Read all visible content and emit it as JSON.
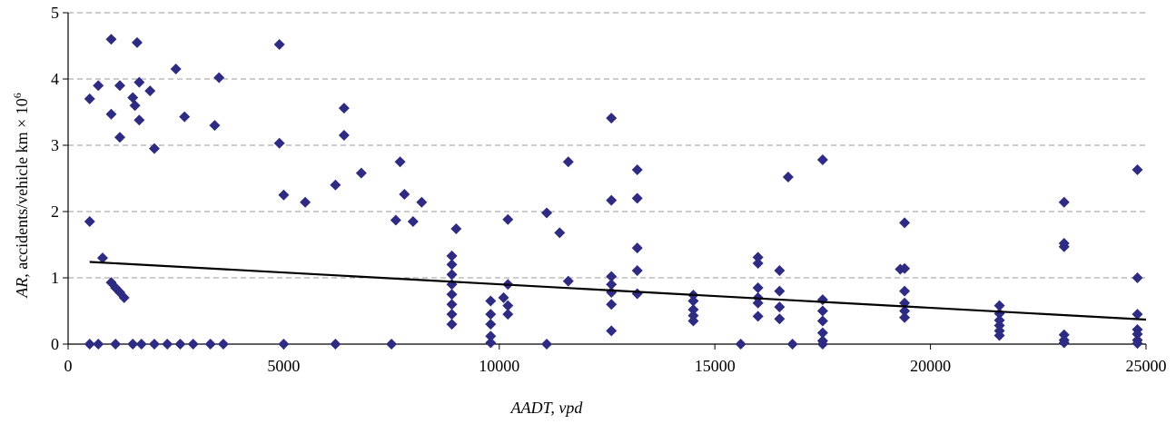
{
  "chart_data": {
    "type": "scatter",
    "title": "",
    "xlabel": "AADT, vpd",
    "ylabel_italic": "AR",
    "ylabel_rest": ", accidents/vehicle km × 10",
    "ylabel_sup": "6",
    "xlim": [
      0,
      25000
    ],
    "ylim": [
      0,
      5
    ],
    "xticks": [
      "0",
      "5000",
      "10000",
      "15000",
      "20000",
      "25000"
    ],
    "yticks": [
      "0",
      "1",
      "2",
      "3",
      "4",
      "5"
    ],
    "grid": "horizontal dashed",
    "marker": "diamond",
    "point_color": "#2e2b82",
    "trendline": {
      "x": [
        500,
        25000
      ],
      "y": [
        1.24,
        0.37
      ],
      "color": "#000000"
    },
    "points": [
      [
        500,
        3.7
      ],
      [
        700,
        3.9
      ],
      [
        1000,
        4.6
      ],
      [
        1200,
        3.9
      ],
      [
        1600,
        4.55
      ],
      [
        1900,
        3.82
      ],
      [
        2500,
        4.15
      ],
      [
        3500,
        4.02
      ],
      [
        4900,
        4.52
      ],
      [
        1000,
        3.47
      ],
      [
        1200,
        3.12
      ],
      [
        1650,
        3.95
      ],
      [
        1650,
        3.38
      ],
      [
        1500,
        3.72
      ],
      [
        1550,
        3.6
      ],
      [
        2000,
        2.95
      ],
      [
        2700,
        3.43
      ],
      [
        3400,
        3.3
      ],
      [
        4900,
        3.03
      ],
      [
        6400,
        3.56
      ],
      [
        6400,
        3.15
      ],
      [
        6800,
        2.58
      ],
      [
        7700,
        2.75
      ],
      [
        12600,
        3.41
      ],
      [
        13200,
        2.63
      ],
      [
        11600,
        2.75
      ],
      [
        17500,
        2.78
      ],
      [
        16700,
        2.52
      ],
      [
        24800,
        2.63
      ],
      [
        500,
        1.85
      ],
      [
        800,
        1.3
      ],
      [
        1000,
        0.93
      ],
      [
        1100,
        0.85
      ],
      [
        1200,
        0.78
      ],
      [
        1300,
        0.7
      ],
      [
        23100,
        2.14
      ],
      [
        23100,
        1.52
      ],
      [
        23100,
        1.47
      ],
      [
        19400,
        1.83
      ],
      [
        19300,
        1.13
      ],
      [
        19400,
        1.14
      ],
      [
        12600,
        2.17
      ],
      [
        13200,
        2.2
      ],
      [
        10200,
        1.88
      ],
      [
        9000,
        1.74
      ],
      [
        8200,
        2.14
      ],
      [
        7800,
        2.26
      ],
      [
        5000,
        2.25
      ],
      [
        5500,
        2.14
      ],
      [
        6200,
        2.4
      ],
      [
        7600,
        1.87
      ],
      [
        8000,
        1.85
      ],
      [
        11100,
        1.98
      ],
      [
        11400,
        1.68
      ],
      [
        11600,
        0.95
      ],
      [
        13200,
        1.45
      ],
      [
        13200,
        1.11
      ],
      [
        13200,
        0.76
      ],
      [
        14500,
        0.74
      ],
      [
        14500,
        0.65
      ],
      [
        14500,
        0.52
      ],
      [
        14500,
        0.43
      ],
      [
        14500,
        0.35
      ],
      [
        16000,
        1.31
      ],
      [
        16000,
        1.22
      ],
      [
        16000,
        0.85
      ],
      [
        16000,
        0.7
      ],
      [
        16000,
        0.62
      ],
      [
        16000,
        0.42
      ],
      [
        16500,
        1.11
      ],
      [
        16500,
        0.8
      ],
      [
        16500,
        0.56
      ],
      [
        16500,
        0.38
      ],
      [
        17500,
        0.67
      ],
      [
        17500,
        0.5
      ],
      [
        17500,
        0.35
      ],
      [
        17500,
        0.17
      ],
      [
        17500,
        0.05
      ],
      [
        17500,
        0.0
      ],
      [
        19400,
        0.8
      ],
      [
        19400,
        0.62
      ],
      [
        19400,
        0.5
      ],
      [
        19400,
        0.4
      ],
      [
        21600,
        0.58
      ],
      [
        21600,
        0.46
      ],
      [
        21600,
        0.36
      ],
      [
        21600,
        0.28
      ],
      [
        21600,
        0.2
      ],
      [
        21600,
        0.13
      ],
      [
        23100,
        0.14
      ],
      [
        23100,
        0.06
      ],
      [
        23100,
        0.02
      ],
      [
        24800,
        1.0
      ],
      [
        24800,
        0.45
      ],
      [
        24800,
        0.22
      ],
      [
        24800,
        0.15
      ],
      [
        24800,
        0.06
      ],
      [
        24800,
        0.01
      ],
      [
        12600,
        0.9
      ],
      [
        12600,
        0.78
      ],
      [
        12600,
        0.6
      ],
      [
        12600,
        0.2
      ],
      [
        12600,
        1.02
      ],
      [
        10100,
        0.7
      ],
      [
        10200,
        0.9
      ],
      [
        10200,
        0.58
      ],
      [
        10200,
        0.45
      ],
      [
        9800,
        0.65
      ],
      [
        9800,
        0.45
      ],
      [
        9800,
        0.3
      ],
      [
        9800,
        0.12
      ],
      [
        9800,
        0.02
      ],
      [
        8900,
        1.33
      ],
      [
        8900,
        1.2
      ],
      [
        8900,
        1.05
      ],
      [
        8900,
        0.9
      ],
      [
        8900,
        0.75
      ],
      [
        8900,
        0.6
      ],
      [
        8900,
        0.45
      ],
      [
        8900,
        0.3
      ],
      [
        3300,
        0.0
      ],
      [
        2900,
        0.0
      ],
      [
        2600,
        0.0
      ],
      [
        2300,
        0.0
      ],
      [
        2000,
        0.0
      ],
      [
        1700,
        0.0
      ],
      [
        1500,
        0.0
      ],
      [
        1100,
        0.0
      ],
      [
        700,
        0.0
      ],
      [
        500,
        0.0
      ],
      [
        3600,
        0.0
      ],
      [
        5000,
        0.0
      ],
      [
        6200,
        0.0
      ],
      [
        7500,
        0.0
      ],
      [
        11100,
        0.0
      ],
      [
        15600,
        0.0
      ],
      [
        16800,
        0.0
      ]
    ]
  }
}
